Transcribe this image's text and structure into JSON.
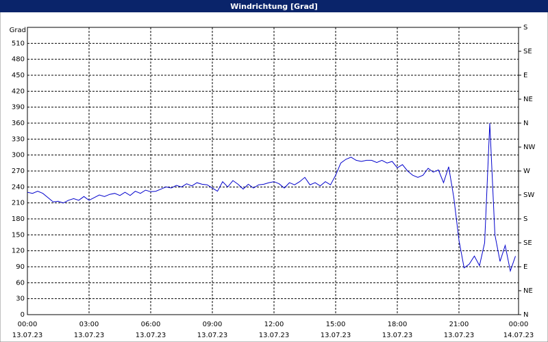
{
  "chart_data": {
    "type": "line",
    "title": "Windrichtung [Grad]",
    "y_label": "Grad",
    "x": [
      0,
      0.25,
      0.5,
      0.75,
      1,
      1.25,
      1.5,
      1.75,
      2,
      2.25,
      2.5,
      2.75,
      3,
      3.25,
      3.5,
      3.75,
      4,
      4.25,
      4.5,
      4.75,
      5,
      5.25,
      5.5,
      5.75,
      6,
      6.25,
      6.5,
      6.75,
      7,
      7.25,
      7.5,
      7.75,
      8,
      8.25,
      8.5,
      8.75,
      9,
      9.25,
      9.5,
      9.75,
      10,
      10.25,
      10.5,
      10.75,
      11,
      11.25,
      11.5,
      11.75,
      12,
      12.25,
      12.5,
      12.75,
      13,
      13.25,
      13.5,
      13.75,
      14,
      14.25,
      14.5,
      14.75,
      15,
      15.25,
      15.5,
      15.75,
      16,
      16.25,
      16.5,
      16.75,
      17,
      17.25,
      17.5,
      17.75,
      18,
      18.25,
      18.5,
      18.75,
      19,
      19.25,
      19.5,
      19.75,
      20,
      20.25,
      20.5,
      20.75,
      21,
      21.25,
      21.5,
      21.75,
      22,
      22.25,
      22.5,
      22.75,
      23,
      23.25,
      23.5,
      23.75
    ],
    "series": [
      {
        "name": "Windrichtung",
        "color": "#0000cc",
        "values": [
          230,
          228,
          232,
          228,
          220,
          212,
          213,
          210,
          215,
          218,
          215,
          222,
          215,
          220,
          225,
          222,
          226,
          228,
          224,
          230,
          224,
          232,
          228,
          234,
          231,
          232,
          236,
          240,
          238,
          243,
          240,
          246,
          242,
          248,
          245,
          244,
          238,
          232,
          250,
          240,
          252,
          245,
          236,
          245,
          238,
          244,
          245,
          248,
          250,
          246,
          238,
          248,
          244,
          250,
          258,
          244,
          248,
          242,
          250,
          244,
          262,
          285,
          292,
          296,
          290,
          288,
          290,
          290,
          286,
          290,
          285,
          288,
          276,
          282,
          270,
          262,
          258,
          262,
          275,
          268,
          272,
          248,
          278,
          220,
          140,
          88,
          95,
          110,
          92,
          135,
          360,
          150,
          100,
          130,
          82,
          110
        ]
      }
    ],
    "xlim": [
      0,
      24
    ],
    "xticks": [
      {
        "value": 0,
        "label": "00:00"
      },
      {
        "value": 3,
        "label": "03:00"
      },
      {
        "value": 6,
        "label": "06:00"
      },
      {
        "value": 9,
        "label": "09:00"
      },
      {
        "value": 12,
        "label": "12:00"
      },
      {
        "value": 15,
        "label": "15:00"
      },
      {
        "value": 18,
        "label": "18:00"
      },
      {
        "value": 21,
        "label": "21:00"
      },
      {
        "value": 24,
        "label": "00:00"
      }
    ],
    "xtick_dates": [
      "13.07.23",
      "13.07.23",
      "13.07.23",
      "13.07.23",
      "13.07.23",
      "13.07.23",
      "13.07.23",
      "13.07.23",
      "14.07.23"
    ],
    "ylim": [
      0,
      540
    ],
    "yticks": [
      0,
      30,
      60,
      90,
      120,
      150,
      180,
      210,
      240,
      270,
      300,
      330,
      360,
      390,
      420,
      450,
      480,
      510
    ],
    "y2lim": [
      0,
      540
    ],
    "y2ticks": [
      {
        "value": 0,
        "label": "N"
      },
      {
        "value": 45,
        "label": "NE"
      },
      {
        "value": 90,
        "label": "E"
      },
      {
        "value": 135,
        "label": "SE"
      },
      {
        "value": 180,
        "label": "S"
      },
      {
        "value": 225,
        "label": "SW"
      },
      {
        "value": 270,
        "label": "W"
      },
      {
        "value": 315,
        "label": "NW"
      },
      {
        "value": 360,
        "label": "N"
      },
      {
        "value": 405,
        "label": "NE"
      },
      {
        "value": 450,
        "label": "E"
      },
      {
        "value": 495,
        "label": "SE"
      },
      {
        "value": 540,
        "label": "S"
      }
    ],
    "grid": true
  }
}
